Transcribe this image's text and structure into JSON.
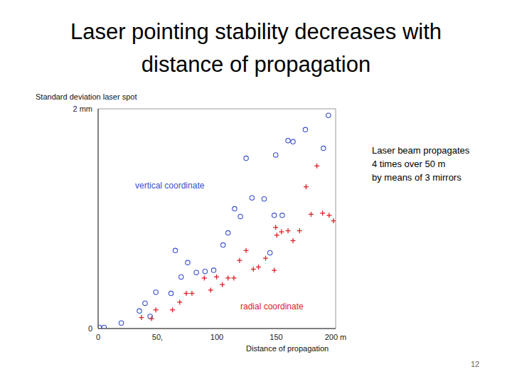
{
  "chart_data": {
    "type": "scatter",
    "title": "Laser pointing stability decreases with distance of propagation",
    "y_label": "Standard deviation laser spot",
    "x_label": "Distance of propagation",
    "annotation": [
      "Laser beam propagates",
      "4 times over 50 m",
      "by means of 3 mirrors"
    ],
    "page_number": "12",
    "xlim": [
      0,
      200
    ],
    "ylim": [
      0,
      2
    ],
    "xticks": [
      0,
      {
        "value": 50,
        "label": "50,"
      },
      100,
      150,
      {
        "value": 200,
        "label": "200 m"
      }
    ],
    "yticks": [
      0,
      {
        "value": 2,
        "label": "2 mm"
      }
    ],
    "series": [
      {
        "name": "vertical coordinate",
        "color": "#3a4fd0",
        "marker": "circle",
        "x": [
          1,
          5,
          19.5,
          34.7,
          39.5,
          43.8,
          48.6,
          61.4,
          65,
          69.9,
          75.4,
          82.7,
          90,
          97.3,
          105.2,
          109.4,
          114.9,
          119.8,
          124.6,
          129.5,
          139.8,
          144.7,
          148.3,
          149.5,
          155,
          159.9,
          164.1,
          174.5,
          189.7,
          193.9
        ],
        "values": [
          0.01,
          0.01,
          0.05,
          0.16,
          0.23,
          0.11,
          0.33,
          0.32,
          0.71,
          0.47,
          0.6,
          0.51,
          0.52,
          0.53,
          0.76,
          0.87,
          1.09,
          1.02,
          1.55,
          1.19,
          1.18,
          0.69,
          1.03,
          1.58,
          1.03,
          1.71,
          1.7,
          1.81,
          1.64,
          1.94
        ]
      },
      {
        "name": "radial coordinate",
        "color": "#e0202a",
        "marker": "plus",
        "x": [
          36.5,
          45,
          48.6,
          62.6,
          68.7,
          74.2,
          79,
          89.4,
          94.8,
          99.7,
          104.6,
          109.4,
          114.3,
          119.1,
          124.6,
          130.7,
          135,
          141,
          148.3,
          149.5,
          150.5,
          154.4,
          159.9,
          164.1,
          169.6,
          175.1,
          179.3,
          184.2,
          189,
          194.5,
          198.2
        ],
        "values": [
          0.1,
          0.09,
          0.17,
          0.17,
          0.24,
          0.32,
          0.32,
          0.46,
          0.35,
          0.47,
          0.4,
          0.46,
          0.46,
          0.62,
          0.71,
          0.54,
          0.56,
          0.64,
          0.53,
          0.92,
          0.85,
          0.88,
          0.89,
          0.8,
          0.89,
          1.29,
          1.04,
          1.48,
          1.05,
          1.03,
          0.98
        ]
      }
    ]
  }
}
